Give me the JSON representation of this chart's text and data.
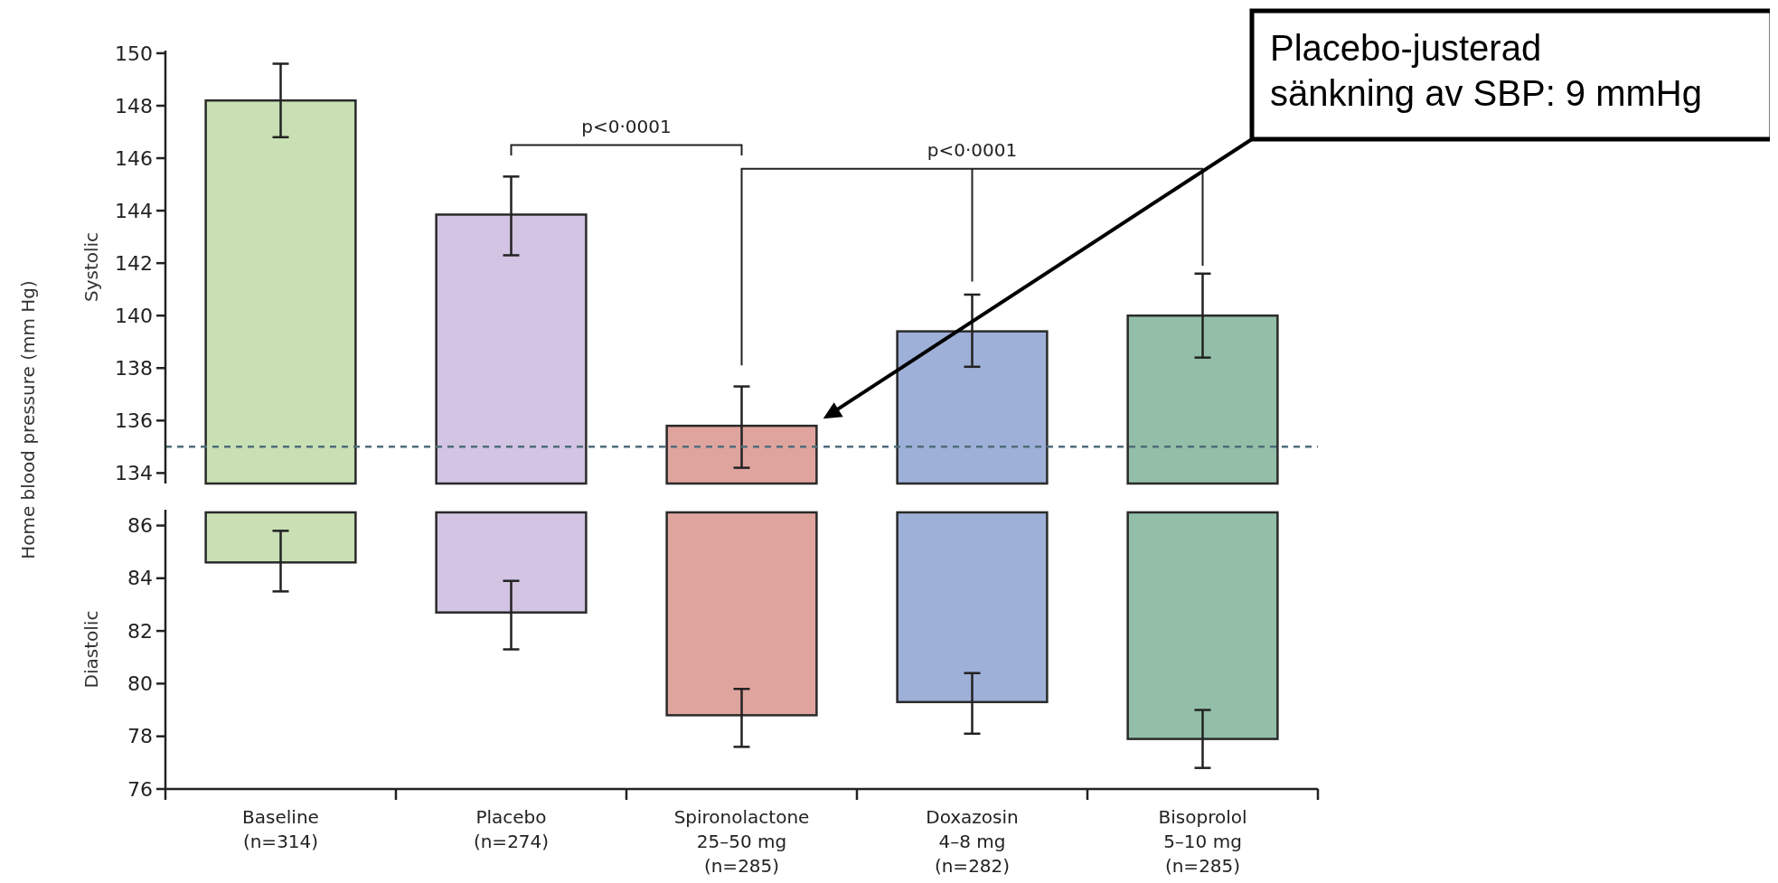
{
  "chart_data": [
    {
      "type": "bar",
      "ylabel": "Systolic",
      "categories": [
        null,
        null,
        null,
        null,
        null
      ],
      "values": [
        148.2,
        143.85,
        135.8,
        139.4,
        140.0
      ],
      "colors": [
        "#c8e0b4",
        "#d2c4e2",
        "#e0a49e",
        "#9eafd8",
        "#93bfa8"
      ],
      "errors": [
        [
          146.8,
          149.6
        ],
        [
          142.3,
          145.3
        ],
        [
          134.2,
          137.3
        ],
        [
          138.05,
          140.8
        ],
        [
          138.4,
          141.6
        ]
      ],
      "ylim": [
        133.6,
        150.1
      ],
      "yticks": [
        134,
        136,
        138,
        140,
        142,
        144,
        146,
        148,
        150
      ],
      "tick_labels": "y",
      "ref_lines": [
        {
          "axis": "y",
          "value": 135,
          "color": "#4f6d7a",
          "line_style": "dashed"
        }
      ],
      "annotations": [
        "Home blood pressure (mm Hg)",
        "p<0·0001",
        "p<0·0001",
        "Placebo-justerad sänkning av SBP: 9 mmHg"
      ]
    },
    {
      "type": "bar",
      "ylabel": "Diastolic",
      "categories": [
        "Baseline\n(n=314)",
        "Placebo\n(n=274)",
        "Spironolactone\n25–50 mg\n(n=285)",
        "Doxazosin\n4–8 mg\n(n=282)",
        "Bisoprolol\n5–10 mg\n(n=285)"
      ],
      "base": [
        86.5,
        86.5,
        86.5,
        86.5,
        86.5
      ],
      "values": [
        -1.9,
        -3.8,
        -7.7,
        -7.2,
        -8.6
      ],
      "colors": [
        "#c8e0b4",
        "#d2c4e2",
        "#e0a49e",
        "#9eafd8",
        "#93bfa8"
      ],
      "errors": [
        [
          83.5,
          85.8
        ],
        [
          81.3,
          83.9
        ],
        [
          77.6,
          79.8
        ],
        [
          78.1,
          80.4
        ],
        [
          76.8,
          79.0
        ]
      ],
      "ylim": [
        76,
        86.6
      ],
      "yticks": [
        76,
        78,
        80,
        82,
        84,
        86
      ]
    }
  ]
}
